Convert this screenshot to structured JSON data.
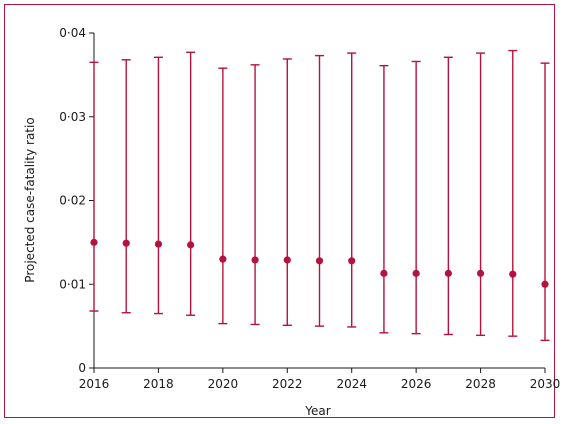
{
  "chart_data": {
    "type": "scatter",
    "title": "",
    "xlabel": "Year",
    "ylabel": "Projected case-fatality ratio",
    "x": [
      2016,
      2017,
      2018,
      2019,
      2020,
      2021,
      2022,
      2023,
      2024,
      2025,
      2026,
      2027,
      2028,
      2029,
      2030
    ],
    "series": [
      {
        "values": [
          0.015,
          0.0149,
          0.0148,
          0.0147,
          0.013,
          0.0129,
          0.0129,
          0.0128,
          0.0128,
          0.0113,
          0.0113,
          0.0113,
          0.0113,
          0.0112,
          0.01
        ],
        "lower": [
          0.0068,
          0.0066,
          0.0065,
          0.0063,
          0.0053,
          0.0052,
          0.0051,
          0.005,
          0.0049,
          0.0042,
          0.0041,
          0.004,
          0.0039,
          0.0038,
          0.0033
        ],
        "upper": [
          0.0365,
          0.0368,
          0.0371,
          0.0377,
          0.0358,
          0.0362,
          0.0369,
          0.0373,
          0.0376,
          0.0361,
          0.0366,
          0.0371,
          0.0376,
          0.0379,
          0.0364
        ]
      }
    ],
    "xlim": [
      2016,
      2030
    ],
    "ylim": [
      0,
      0.04
    ],
    "x_ticks": [
      2016,
      2018,
      2020,
      2022,
      2024,
      2026,
      2028,
      2030
    ],
    "y_ticks": [
      0,
      0.01,
      0.02,
      0.03,
      0.04
    ],
    "y_tick_labels": [
      "0",
      "0·01",
      "0·02",
      "0·03",
      "0·04"
    ],
    "grid": false,
    "legend": "none",
    "color": "#b5123e"
  }
}
